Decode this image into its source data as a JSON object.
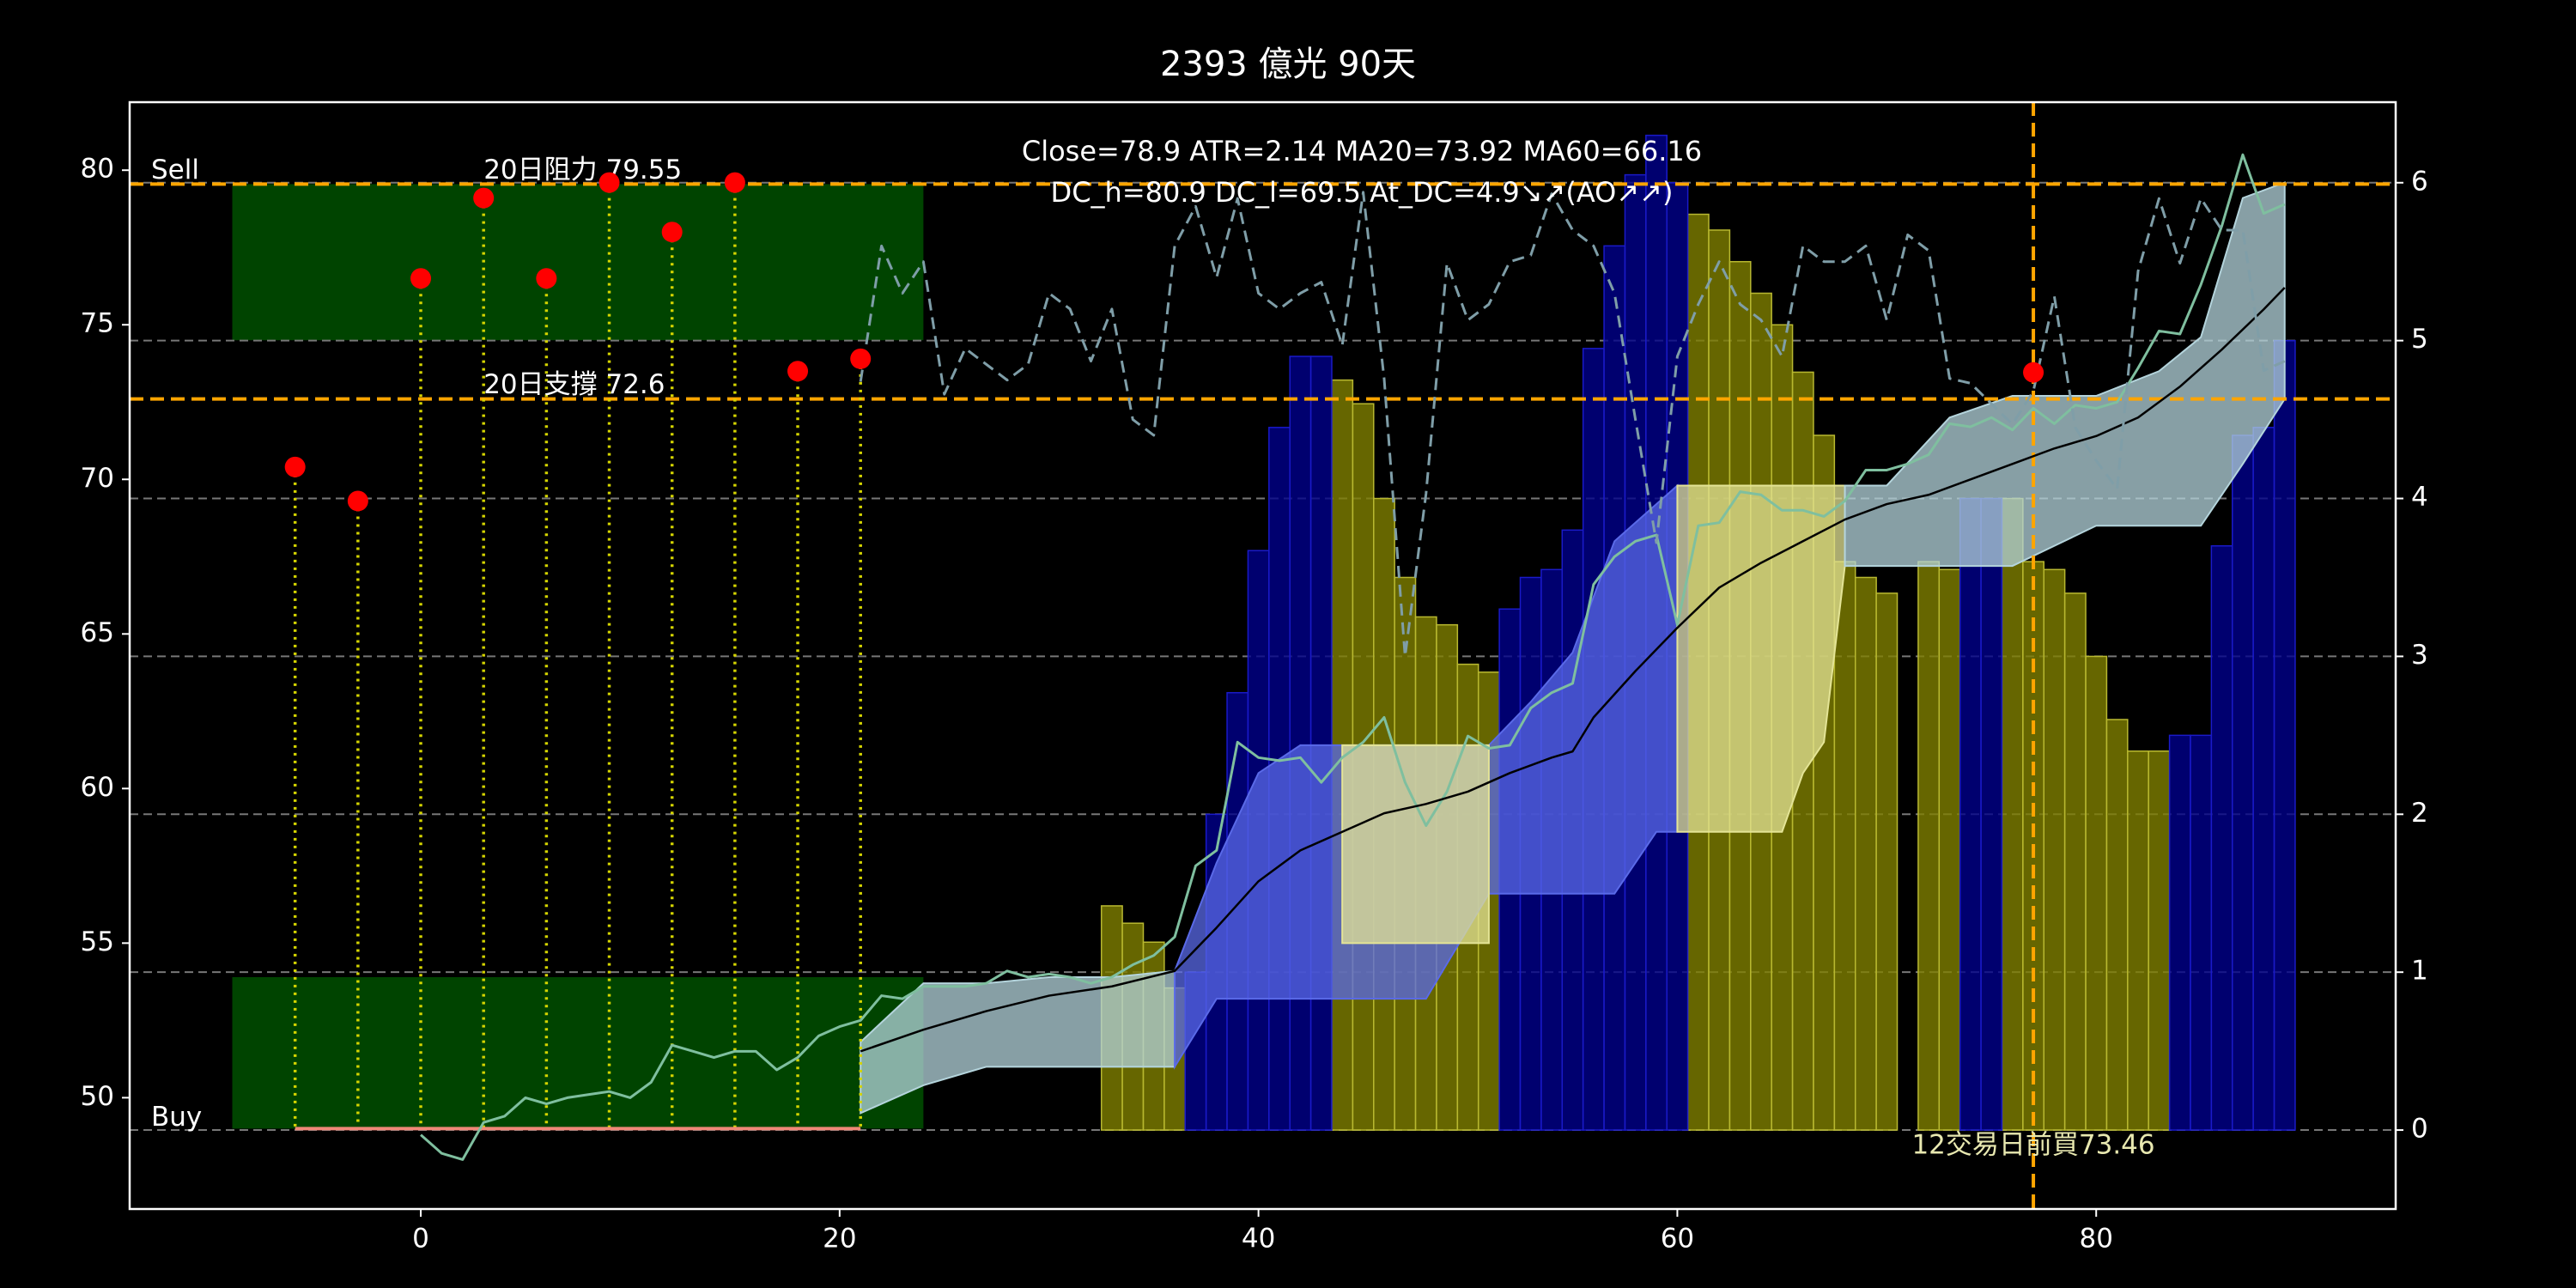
{
  "chart_data": {
    "type": "combo",
    "title": "2393 億光 90天",
    "xlim": [
      -13.9,
      94.3
    ],
    "ylim": [
      46.4,
      82.2
    ],
    "y2lim": [
      -0.5,
      6.51
    ],
    "xticks": [
      0,
      20,
      40,
      60,
      80
    ],
    "yticks": [
      50,
      55,
      60,
      65,
      70,
      75,
      80
    ],
    "y2ticks": [
      0,
      1,
      2,
      3,
      4,
      5,
      6
    ],
    "grid": true,
    "stats": [
      "Close=78.9 ATR=2.14 MA20=73.92 MA60=66.16",
      "DC_h=80.9 DC_l=69.5 At_DC=4.9↘↗(AO↗↗)"
    ],
    "buy_note": "12交易日前買73.46",
    "zones": [
      {
        "label": "Sell",
        "color": "#004400",
        "x": [
          -9,
          24
        ],
        "y": [
          74.5,
          79.55
        ]
      },
      {
        "label": "Buy",
        "color": "#004400",
        "x": [
          -9,
          24
        ],
        "y": [
          49.0,
          53.9
        ]
      }
    ],
    "hlines": [
      {
        "value": 79.55,
        "label": "20日阻力 79.55",
        "color": "#ffa500"
      },
      {
        "value": 72.6,
        "label": "20日支撐 72.6",
        "color": "#ffa500"
      }
    ],
    "bar_series": [
      {
        "color": "#808000",
        "edge": "#b8b830",
        "axis": "y2",
        "x": [
          33,
          34,
          35,
          36,
          44,
          45,
          46,
          47,
          48,
          49,
          50,
          51,
          61,
          62,
          63,
          64,
          65,
          66,
          67,
          68,
          69,
          70,
          72,
          73,
          76,
          77,
          78,
          79,
          80,
          81,
          82,
          83
        ],
        "values": [
          1.42,
          1.31,
          1.19,
          0.9,
          4.75,
          4.6,
          4.0,
          3.5,
          3.25,
          3.2,
          2.95,
          2.9,
          5.8,
          5.7,
          5.5,
          5.3,
          5.1,
          4.8,
          4.4,
          3.6,
          3.5,
          3.4,
          3.6,
          3.55,
          4.0,
          3.6,
          3.55,
          3.4,
          3.0,
          2.6,
          2.4,
          2.4
        ]
      },
      {
        "color": "#00008b",
        "edge": "#1a1ac8",
        "axis": "y2",
        "x": [
          37,
          38,
          39,
          40,
          41,
          42,
          43,
          52,
          53,
          54,
          55,
          56,
          57,
          58,
          59,
          60,
          74,
          75,
          84,
          85,
          86,
          87,
          88,
          89
        ],
        "values": [
          1.0,
          2.0,
          2.77,
          3.67,
          4.45,
          4.9,
          4.9,
          3.3,
          3.5,
          3.55,
          3.8,
          4.95,
          5.6,
          6.05,
          6.3,
          6.0,
          4.0,
          4.0,
          2.5,
          2.5,
          3.7,
          4.4,
          4.45,
          5.0
        ]
      }
    ],
    "bands": [
      {
        "color": "#b4d4dc",
        "x": [
          21,
          24,
          27,
          30,
          33,
          36
        ],
        "upper": [
          51.8,
          53.7,
          53.7,
          53.9,
          53.9,
          54.1
        ],
        "lower": [
          49.5,
          50.4,
          51.0,
          51.0,
          51.0,
          51.0
        ]
      },
      {
        "color": "#5a6ae8",
        "x": [
          36,
          38,
          40,
          42,
          44,
          48,
          51,
          53,
          55,
          57,
          59,
          60
        ],
        "upper": [
          54.1,
          57.6,
          60.5,
          61.4,
          61.4,
          61.4,
          61.4,
          62.8,
          64.4,
          68.0,
          69.2,
          69.8
        ],
        "lower": [
          51.0,
          53.2,
          53.2,
          53.2,
          53.2,
          53.2,
          56.6,
          56.6,
          56.6,
          56.6,
          58.6,
          58.6
        ]
      },
      {
        "color": "#e4e496",
        "x": [
          44,
          51
        ],
        "upper": [
          61.4,
          61.4
        ],
        "lower": [
          55.0,
          55.0
        ]
      },
      {
        "color": "#e4e496",
        "x": [
          60,
          65,
          66,
          67,
          68
        ],
        "upper": [
          69.8,
          69.8,
          69.8,
          69.8,
          69.8
        ],
        "lower": [
          58.6,
          58.6,
          60.5,
          61.5,
          67.2
        ]
      },
      {
        "color": "#b4d4dc",
        "x": [
          68,
          70,
          73,
          76,
          80,
          83,
          85,
          87,
          89
        ],
        "upper": [
          69.8,
          69.8,
          72.0,
          72.7,
          72.7,
          73.5,
          74.6,
          79.1,
          79.6
        ],
        "lower": [
          67.2,
          67.2,
          67.2,
          67.2,
          68.5,
          68.5,
          68.5,
          70.5,
          72.6
        ]
      }
    ],
    "series": [
      {
        "color": "#7fbf9f",
        "width": 3,
        "x": [
          0,
          1,
          2,
          3,
          4,
          5,
          6,
          7,
          8,
          9,
          10,
          11,
          12,
          13,
          14,
          15,
          16,
          17,
          18,
          19,
          20,
          21,
          22,
          23,
          24,
          25,
          26,
          27,
          28,
          29,
          30,
          31,
          32,
          33,
          34,
          35,
          36,
          37,
          38,
          39,
          40,
          41,
          42,
          43,
          44,
          45,
          46,
          47,
          48,
          49,
          50,
          51,
          52,
          53,
          54,
          55,
          56,
          57,
          58,
          59,
          60,
          61,
          62,
          63,
          64,
          65,
          66,
          67,
          68,
          69,
          70,
          71,
          72,
          73,
          74,
          75,
          76,
          77,
          78,
          79,
          80,
          81,
          82,
          83,
          84,
          85,
          86,
          87,
          88,
          89
        ],
        "values": [
          48.8,
          48.2,
          48.0,
          49.2,
          49.4,
          50.0,
          49.8,
          50.0,
          50.1,
          50.2,
          50.0,
          50.5,
          51.7,
          51.5,
          51.3,
          51.5,
          51.5,
          50.9,
          51.3,
          52.0,
          52.3,
          52.5,
          53.3,
          53.2,
          53.6,
          53.6,
          53.6,
          53.7,
          54.1,
          53.9,
          54.0,
          53.9,
          53.7,
          53.9,
          54.3,
          54.6,
          55.2,
          57.5,
          58.0,
          61.5,
          61.0,
          60.9,
          61.0,
          60.2,
          61.0,
          61.5,
          62.3,
          60.2,
          58.8,
          59.9,
          61.7,
          61.3,
          61.4,
          62.6,
          63.1,
          63.4,
          66.6,
          67.5,
          68.0,
          68.2,
          65.3,
          68.5,
          68.6,
          69.6,
          69.5,
          69.0,
          69.0,
          68.8,
          69.3,
          70.3,
          70.3,
          70.5,
          70.8,
          71.8,
          71.7,
          72.0,
          71.6,
          72.3,
          71.8,
          72.4,
          72.3,
          72.5,
          73.6,
          74.8,
          74.7,
          76.3,
          78.2,
          80.5,
          78.6,
          78.9
        ]
      },
      {
        "color": "#000000",
        "width": 2.5,
        "x": [
          21,
          24,
          27,
          30,
          33,
          36,
          38,
          40,
          42,
          44,
          46,
          48,
          50,
          52,
          54,
          55,
          56,
          58,
          60,
          62,
          64,
          66,
          68,
          70,
          72,
          74,
          76,
          78,
          80,
          82,
          84,
          86,
          88,
          89
        ],
        "values": [
          51.5,
          52.2,
          52.8,
          53.3,
          53.6,
          54.1,
          55.5,
          57.0,
          58.0,
          58.6,
          59.2,
          59.5,
          59.9,
          60.5,
          61.0,
          61.2,
          62.3,
          63.8,
          65.2,
          66.5,
          67.3,
          68.0,
          68.7,
          69.2,
          69.5,
          70.0,
          70.5,
          71.0,
          71.4,
          72.0,
          73.0,
          74.2,
          75.5,
          76.2
        ]
      },
      {
        "color": "#7f9ea8",
        "width": 3,
        "dashed": true,
        "axis": "y2",
        "x": [
          21,
          22,
          23,
          24,
          25,
          26,
          27,
          28,
          29,
          30,
          31,
          32,
          33,
          34,
          35,
          36,
          37,
          38,
          39,
          40,
          41,
          42,
          43,
          44,
          45,
          46,
          47,
          48,
          49,
          50,
          51,
          52,
          53,
          54,
          55,
          56,
          57,
          58,
          59,
          60,
          61,
          62,
          63,
          64,
          65,
          66,
          67,
          68,
          69,
          70,
          71,
          72,
          73,
          74,
          75,
          76,
          77,
          78,
          79,
          80,
          81,
          82,
          83,
          84,
          85,
          86,
          87,
          88,
          89
        ],
        "values": [
          4.74,
          5.6,
          5.3,
          5.5,
          4.66,
          4.95,
          4.85,
          4.75,
          4.85,
          5.3,
          5.2,
          4.87,
          5.2,
          4.5,
          4.4,
          5.6,
          5.85,
          5.4,
          5.9,
          5.3,
          5.2,
          5.3,
          5.37,
          4.97,
          5.94,
          4.76,
          3.0,
          4.03,
          5.49,
          5.13,
          5.23,
          5.5,
          5.54,
          5.93,
          5.7,
          5.6,
          5.3,
          4.5,
          3.72,
          4.9,
          5.23,
          5.5,
          5.23,
          5.13,
          4.9,
          5.6,
          5.5,
          5.5,
          5.6,
          5.13,
          5.67,
          5.57,
          4.76,
          4.73,
          4.6,
          4.47,
          4.68,
          5.28,
          4.45,
          4.24,
          4.06,
          5.44,
          5.9,
          5.49,
          5.9,
          5.7,
          5.7,
          4.81,
          4.87
        ]
      }
    ],
    "signals": {
      "color": "#ff0000",
      "stem_color": "#d4d400",
      "x": [
        -6,
        -3,
        0,
        3,
        6,
        9,
        12,
        15,
        18,
        21
      ],
      "y": [
        70.4,
        69.3,
        76.5,
        79.1,
        76.5,
        79.6,
        78.0,
        79.6,
        73.5,
        73.9
      ]
    },
    "buy_line": {
      "color": "#f08878",
      "x": [
        -6,
        21
      ],
      "y": [
        49.0,
        49.0
      ]
    },
    "buy_marker": {
      "color": "#ff0000",
      "line_color": "#ffa500",
      "x": 77,
      "y": 73.46
    }
  }
}
